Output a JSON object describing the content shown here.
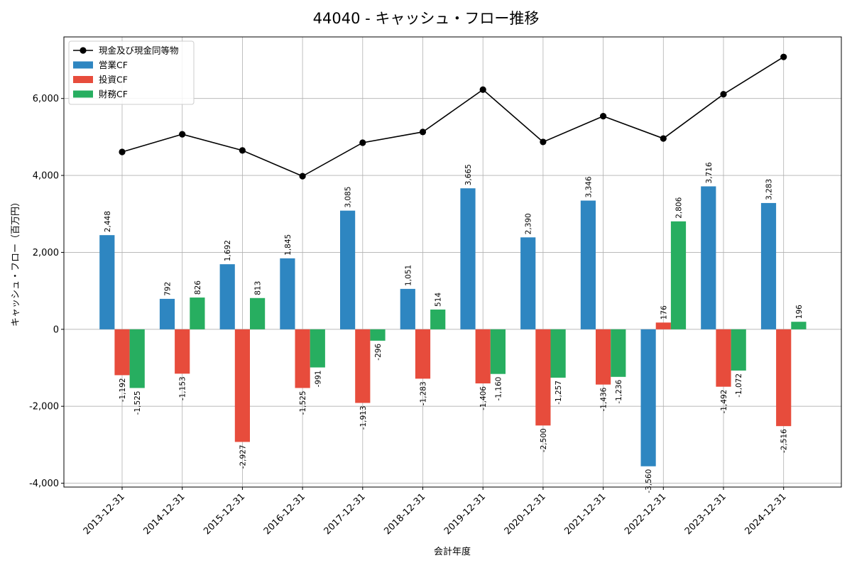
{
  "chart_data": {
    "type": "bar",
    "title": "44040 - キャッシュ・フロー推移",
    "xlabel": "会計年度",
    "ylabel": "キャッシュ・フロー（百万円）",
    "ylim": [
      -4100,
      7600
    ],
    "yticks": [
      -4000,
      -2000,
      0,
      2000,
      4000,
      6000
    ],
    "ytick_labels": [
      "-4,000",
      "-2,000",
      "0",
      "2,000",
      "4,000",
      "6,000"
    ],
    "grid": true,
    "legend_position": "top-left",
    "categories": [
      "2013-12-31",
      "2014-12-31",
      "2015-12-31",
      "2016-12-31",
      "2017-12-31",
      "2018-12-31",
      "2019-12-31",
      "2020-12-31",
      "2021-12-31",
      "2022-12-31",
      "2023-12-31",
      "2024-12-31"
    ],
    "series": [
      {
        "name": "営業CF",
        "kind": "bar",
        "color": "#2e86c1",
        "values": [
          2448,
          792,
          1692,
          1845,
          3085,
          1051,
          3665,
          2390,
          3346,
          -3560,
          3716,
          3283
        ],
        "labels": [
          "2,448",
          "792",
          "1,692",
          "1,845",
          "3,085",
          "1,051",
          "3,665",
          "2,390",
          "3,346",
          "-3,560",
          "3,716",
          "3,283"
        ]
      },
      {
        "name": "投資CF",
        "kind": "bar",
        "color": "#e74c3c",
        "values": [
          -1192,
          -1153,
          -2927,
          -1525,
          -1913,
          -1283,
          -1406,
          -2500,
          -1436,
          176,
          -1492,
          -2516
        ],
        "labels": [
          "-1,192",
          "-1,153",
          "-2,927",
          "-1,525",
          "-1,913",
          "-1,283",
          "-1,406",
          "-2,500",
          "-1,436",
          "176",
          "-1,492",
          "-2,516"
        ]
      },
      {
        "name": "財務CF",
        "kind": "bar",
        "color": "#27ae60",
        "values": [
          -1525,
          826,
          813,
          -991,
          -296,
          514,
          -1160,
          -1257,
          -1236,
          2806,
          -1072,
          196
        ],
        "labels": [
          "-1,525",
          "826",
          "813",
          "-991",
          "-296",
          "514",
          "-1,160",
          "-1,257",
          "-1,236",
          "2,806",
          "-1,072",
          "196"
        ]
      },
      {
        "name": "現金及び現金同等物",
        "kind": "line",
        "color": "#000000",
        "values": [
          4610,
          5070,
          4650,
          3980,
          4850,
          5130,
          6230,
          4870,
          5540,
          4960,
          6110,
          7080
        ]
      }
    ]
  }
}
